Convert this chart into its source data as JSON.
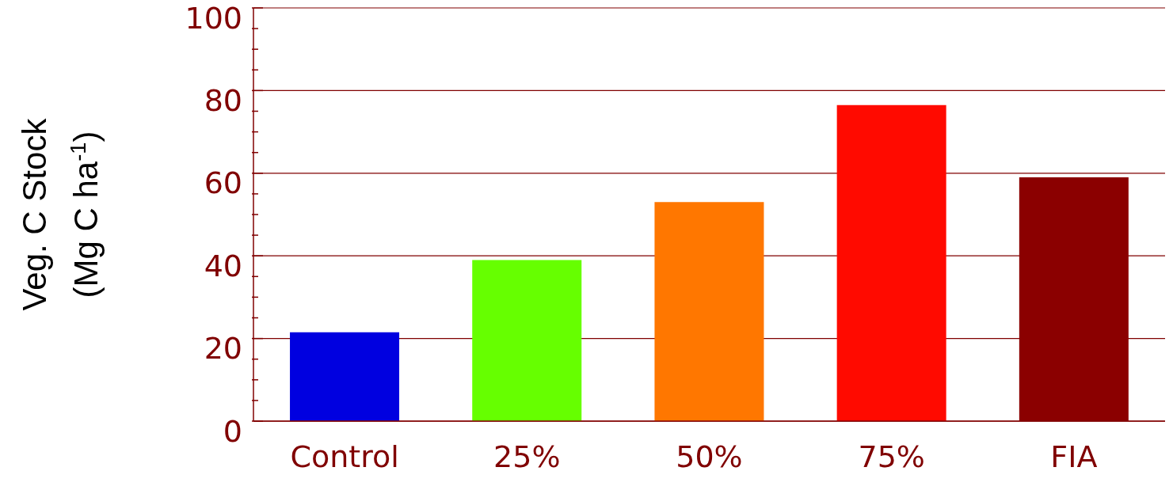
{
  "chart_data": {
    "type": "bar",
    "ylabel": "Veg. C Stock\n(Mg C ha$^{-1}$)",
    "categories": [
      "Control",
      "25%",
      "50%",
      "75%",
      "FIA"
    ],
    "values": [
      21.5,
      39,
      53,
      76.5,
      59
    ],
    "colors": [
      "#0000e0",
      "#66ff00",
      "#ff7700",
      "#ff0a00",
      "#8b0000"
    ],
    "ylim": [
      0,
      100
    ],
    "yticks": [
      0,
      {
        "value": 5,
        "label": null
      },
      {
        "value": 10,
        "label": null
      },
      {
        "value": 15,
        "label": null
      },
      20,
      {
        "value": 25,
        "label": null
      },
      {
        "value": 30,
        "label": null
      },
      {
        "value": 35,
        "label": null
      },
      40,
      {
        "value": 45,
        "label": null
      },
      {
        "value": 50,
        "label": null
      },
      {
        "value": 55,
        "label": null
      },
      60,
      {
        "value": 65,
        "label": null
      },
      {
        "value": 70,
        "label": null
      },
      {
        "value": 75,
        "label": null
      },
      80,
      {
        "value": 85,
        "label": null
      },
      {
        "value": 90,
        "label": null
      },
      {
        "value": 95,
        "label": null
      },
      100
    ],
    "grid": "y"
  }
}
